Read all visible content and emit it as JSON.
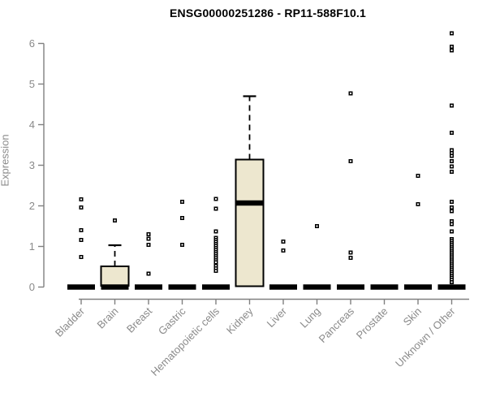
{
  "chart_data": {
    "type": "boxplot",
    "title": "ENSG00000251286 - RP11-588F10.1",
    "ylabel": "Expression",
    "xlabel": "",
    "ylim": [
      0,
      6.3
    ],
    "yticks": [
      0,
      1,
      2,
      3,
      4,
      5,
      6
    ],
    "grid": false,
    "legend": "none",
    "colors": {
      "box_fill": "#EDE7CF",
      "box_stroke": "#000000",
      "median": "#000000",
      "axis": "#808080",
      "tick_label": "#8a8a8a",
      "title": "#000000",
      "outlier": "#000000"
    },
    "categories": [
      "Bladder",
      "Brain",
      "Breast",
      "Gastric",
      "Hematopoietic cells",
      "Kidney",
      "Liver",
      "Lung",
      "Pancreas",
      "Prostate",
      "Skin",
      "Unknown / Other"
    ],
    "series": [
      {
        "name": "Bladder",
        "whisker_low": 0,
        "q1": 0,
        "median": 0,
        "q3": 0,
        "whisker_high": 0,
        "outliers": [
          2.16,
          1.96,
          1.4,
          1.16,
          0.74
        ]
      },
      {
        "name": "Brain",
        "whisker_low": 0,
        "q1": 0.03,
        "median": 0,
        "q3": 0.51,
        "whisker_high": 1.03,
        "outliers": [
          1.64
        ]
      },
      {
        "name": "Breast",
        "whisker_low": 0,
        "q1": 0,
        "median": 0,
        "q3": 0,
        "whisker_high": 0,
        "outliers": [
          1.3,
          1.19,
          1.04,
          0.33
        ]
      },
      {
        "name": "Gastric",
        "whisker_low": 0,
        "q1": 0,
        "median": 0,
        "q3": 0,
        "whisker_high": 0,
        "outliers": [
          2.1,
          1.7,
          1.04
        ]
      },
      {
        "name": "Hematopoietic cells",
        "whisker_low": 0,
        "q1": 0,
        "median": 0,
        "q3": 0,
        "whisker_high": 0,
        "outliers": [
          2.17,
          1.93,
          1.37,
          1.21,
          1.16,
          1.11,
          1.06,
          1.01,
          0.96,
          0.91,
          0.86,
          0.81,
          0.76,
          0.71,
          0.66,
          0.61,
          0.52,
          0.46,
          0.4
        ]
      },
      {
        "name": "Kidney",
        "whisker_low": 0,
        "q1": 0.02,
        "median": 2.07,
        "q3": 3.14,
        "whisker_high": 4.7,
        "outliers": []
      },
      {
        "name": "Liver",
        "whisker_low": 0,
        "q1": 0,
        "median": 0,
        "q3": 0,
        "whisker_high": 0,
        "outliers": [
          1.12,
          0.9
        ]
      },
      {
        "name": "Lung",
        "whisker_low": 0,
        "q1": 0,
        "median": 0,
        "q3": 0,
        "whisker_high": 0,
        "outliers": [
          1.5
        ]
      },
      {
        "name": "Pancreas",
        "whisker_low": 0,
        "q1": 0,
        "median": 0,
        "q3": 0,
        "whisker_high": 0,
        "outliers": [
          4.77,
          3.1,
          0.85,
          0.72
        ]
      },
      {
        "name": "Prostate",
        "whisker_low": 0,
        "q1": 0,
        "median": 0,
        "q3": 0,
        "whisker_high": 0,
        "outliers": []
      },
      {
        "name": "Skin",
        "whisker_low": 0,
        "q1": 0,
        "median": 0,
        "q3": 0,
        "whisker_high": 0,
        "outliers": [
          2.74,
          2.04
        ]
      },
      {
        "name": "Unknown / Other",
        "whisker_low": 0,
        "q1": 0,
        "median": 0,
        "q3": 0,
        "whisker_high": 0,
        "outliers": [
          6.25,
          5.92,
          5.83,
          4.47,
          3.8,
          3.37,
          3.3,
          3.23,
          3.1,
          2.97,
          2.84,
          2.1,
          1.96,
          1.87,
          1.62,
          1.55,
          1.37,
          1.18,
          1.13,
          1.08,
          1.03,
          0.98,
          0.93,
          0.88,
          0.83,
          0.78,
          0.73,
          0.68,
          0.63,
          0.58,
          0.53,
          0.48,
          0.43,
          0.38,
          0.33,
          0.28,
          0.23,
          0.18,
          0.12
        ]
      }
    ]
  }
}
